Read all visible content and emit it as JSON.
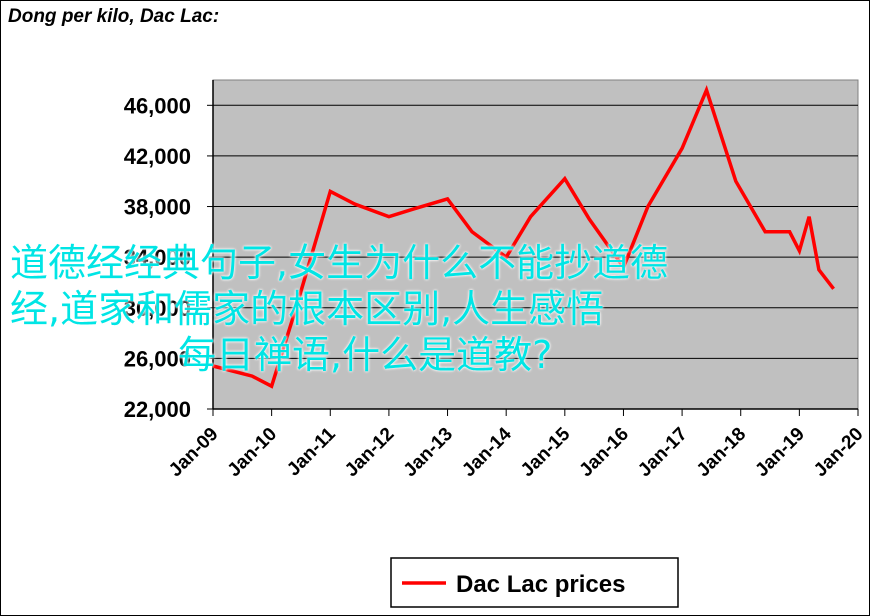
{
  "title": "Dong per kilo, Dac Lac:",
  "overlay_lines": [
    "道德经经典句子,女生为什么不能抄道德",
    "经,道家和儒家的根本区别,人生感悟",
    "每日禅语,什么是道教?"
  ],
  "colors": {
    "plot_bg": "#c0c0c0",
    "line": "#ff0000",
    "overlay_text": "#00e5e5"
  },
  "chart_data": {
    "type": "line",
    "title": "Dong per kilo, Dac Lac:",
    "xlabel": "",
    "ylabel": "",
    "x_ticks": [
      "Jan-09",
      "Jan-10",
      "Jan-11",
      "Jan-12",
      "Jan-13",
      "Jan-14",
      "Jan-15",
      "Jan-16",
      "Jan-17",
      "Jan-18",
      "Jan-19",
      "Jan-20"
    ],
    "y_ticks": [
      "22,000",
      "26,000",
      "30,000",
      "34,000",
      "38,000",
      "42,000",
      "46,000"
    ],
    "ylim": [
      22000,
      48000
    ],
    "grid": true,
    "legend_position": "bottom",
    "series": [
      {
        "name": "Dac Lac prices",
        "color": "#ff0000",
        "points": [
          [
            "2009-01",
            25400
          ],
          [
            "2009-05",
            25000
          ],
          [
            "2009-09",
            24600
          ],
          [
            "2010-01",
            23800
          ],
          [
            "2010-06",
            30000
          ],
          [
            "2011-01",
            39200
          ],
          [
            "2011-06",
            38200
          ],
          [
            "2012-01",
            37200
          ],
          [
            "2012-06",
            37800
          ],
          [
            "2013-01",
            38600
          ],
          [
            "2013-06",
            36000
          ],
          [
            "2014-01",
            34000
          ],
          [
            "2014-06",
            37200
          ],
          [
            "2015-01",
            40200
          ],
          [
            "2015-06",
            37000
          ],
          [
            "2016-01",
            33200
          ],
          [
            "2016-06",
            38000
          ],
          [
            "2017-01",
            42600
          ],
          [
            "2017-06",
            47200
          ],
          [
            "2017-12",
            40000
          ],
          [
            "2018-06",
            36000
          ],
          [
            "2018-11",
            36000
          ],
          [
            "2019-01",
            34500
          ],
          [
            "2019-03",
            37200
          ],
          [
            "2019-05",
            33000
          ],
          [
            "2019-08",
            31500
          ]
        ]
      }
    ]
  }
}
